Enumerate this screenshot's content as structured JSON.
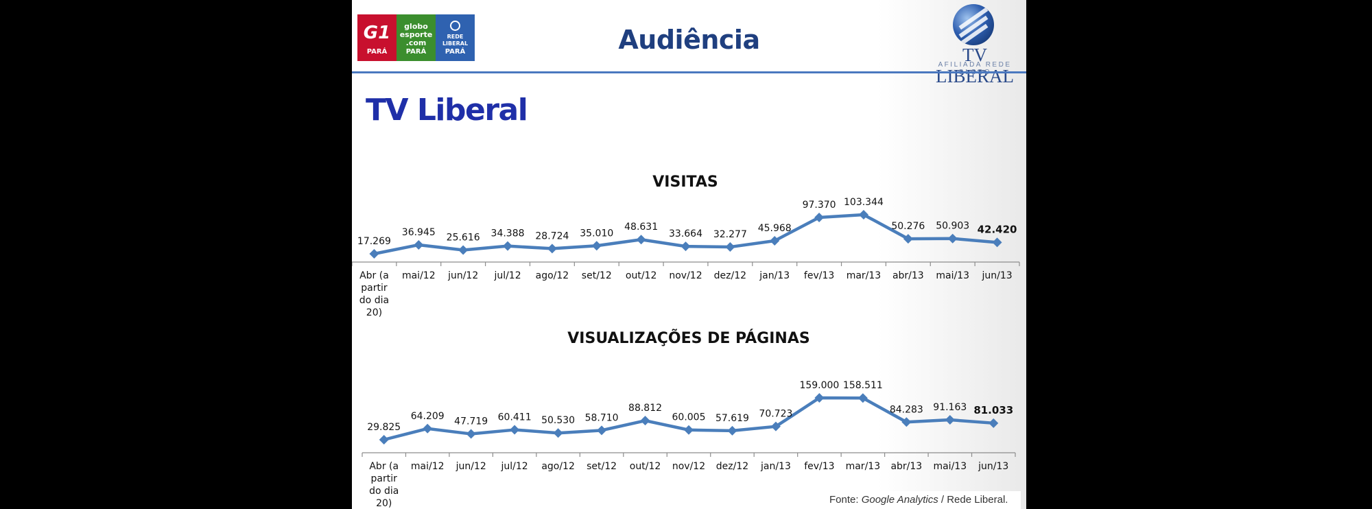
{
  "header": {
    "title": "Audiência",
    "logos": [
      {
        "name": "G1",
        "text": "G1",
        "sub": "PARÁ",
        "color": "#c8102e"
      },
      {
        "name": "globoesporte",
        "text": "globo esporte .com",
        "sub": "PARÁ",
        "color": "#3b8e2e"
      },
      {
        "name": "rede-liberal",
        "text": "REDE LIBERAL",
        "sub": "PARÁ",
        "color": "#2f62b0"
      }
    ],
    "brand": {
      "name": "TV LIBERAL",
      "tagline": "AFILIADA REDE GLOBO"
    }
  },
  "page_title": "TV Liberal",
  "source": {
    "prefix": "Fonte: ",
    "italic": "Google Analytics",
    "suffix": " / Rede Liberal."
  },
  "chart_data": [
    {
      "type": "line",
      "title": "VISITAS",
      "color": "#4a7ebb",
      "categories": [
        "Abr (a partir do dia 20)",
        "mai/12",
        "jun/12",
        "jul/12",
        "ago/12",
        "set/12",
        "out/12",
        "nov/12",
        "dez/12",
        "jan/13",
        "fev/13",
        "mar/13",
        "abr/13",
        "mai/13",
        "jun/13"
      ],
      "values": [
        17269,
        36945,
        25616,
        34388,
        28724,
        35010,
        48631,
        33664,
        32277,
        45968,
        97370,
        103344,
        50276,
        50903,
        42420
      ],
      "labels": [
        "17.269",
        "36.945",
        "25.616",
        "34.388",
        "28.724",
        "35.010",
        "48.631",
        "33.664",
        "32.277",
        "45.968",
        "97.370",
        "103.344",
        "50.276",
        "50.903",
        "42.420"
      ],
      "bold_last_label": true
    },
    {
      "type": "line",
      "title": "VISUALIZAÇÕES DE PÁGINAS",
      "color": "#4a7ebb",
      "categories": [
        "Abr (a partir do dia 20)",
        "mai/12",
        "jun/12",
        "jul/12",
        "ago/12",
        "set/12",
        "out/12",
        "nov/12",
        "dez/12",
        "jan/13",
        "fev/13",
        "mar/13",
        "abr/13",
        "mai/13",
        "jun/13"
      ],
      "values": [
        29825,
        64209,
        47719,
        60411,
        50530,
        58710,
        88812,
        60005,
        57619,
        70723,
        159000,
        158511,
        84283,
        91163,
        81033
      ],
      "labels": [
        "29.825",
        "64.209",
        "47.719",
        "60.411",
        "50.530",
        "58.710",
        "88.812",
        "60.005",
        "57.619",
        "70.723",
        "159.000",
        "158.511",
        "84.283",
        "91.163",
        "81.033"
      ],
      "bold_last_label": true
    }
  ]
}
